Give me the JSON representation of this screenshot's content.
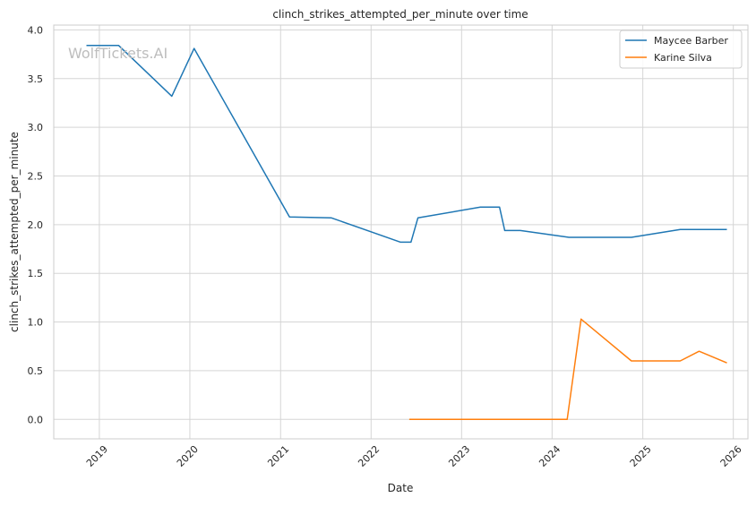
{
  "watermark": "WolfTickets.AI",
  "chart_data": {
    "type": "line",
    "title": "clinch_strikes_attempted_per_minute over time",
    "xlabel": "Date",
    "ylabel": "clinch_strikes_attempted_per_minute",
    "xlim": [
      "2018-07-01",
      "2026-03-01"
    ],
    "ylim": [
      -0.2,
      4.05
    ],
    "x_ticks": [
      "2019",
      "2020",
      "2021",
      "2022",
      "2023",
      "2024",
      "2025",
      "2026"
    ],
    "y_ticks": [
      "0.0",
      "0.5",
      "1.0",
      "1.5",
      "2.0",
      "2.5",
      "3.0",
      "3.5",
      "4.0"
    ],
    "grid": true,
    "legend_position": "top-right",
    "series": [
      {
        "name": "Maycee Barber",
        "color": "#1f77b4",
        "points": [
          {
            "x": "2018-11-10",
            "y": 3.84
          },
          {
            "x": "2019-03-20",
            "y": 3.84
          },
          {
            "x": "2019-10-20",
            "y": 3.32
          },
          {
            "x": "2020-01-18",
            "y": 3.81
          },
          {
            "x": "2021-02-06",
            "y": 2.08
          },
          {
            "x": "2021-07-24",
            "y": 2.07
          },
          {
            "x": "2022-04-30",
            "y": 1.82
          },
          {
            "x": "2022-06-11",
            "y": 1.82
          },
          {
            "x": "2022-07-09",
            "y": 2.07
          },
          {
            "x": "2023-03-18",
            "y": 2.18
          },
          {
            "x": "2023-06-03",
            "y": 2.18
          },
          {
            "x": "2023-06-24",
            "y": 1.94
          },
          {
            "x": "2023-08-26",
            "y": 1.94
          },
          {
            "x": "2024-03-09",
            "y": 1.87
          },
          {
            "x": "2024-11-16",
            "y": 1.87
          },
          {
            "x": "2025-06-01",
            "y": 1.95
          },
          {
            "x": "2025-12-06",
            "y": 1.95
          }
        ]
      },
      {
        "name": "Karine Silva",
        "color": "#ff7f0e",
        "points": [
          {
            "x": "2022-06-04",
            "y": 0.0
          },
          {
            "x": "2024-03-02",
            "y": 0.0
          },
          {
            "x": "2024-04-27",
            "y": 1.03
          },
          {
            "x": "2024-11-16",
            "y": 0.6
          },
          {
            "x": "2025-06-01",
            "y": 0.6
          },
          {
            "x": "2025-08-16",
            "y": 0.7
          },
          {
            "x": "2025-12-06",
            "y": 0.58
          }
        ]
      }
    ]
  }
}
